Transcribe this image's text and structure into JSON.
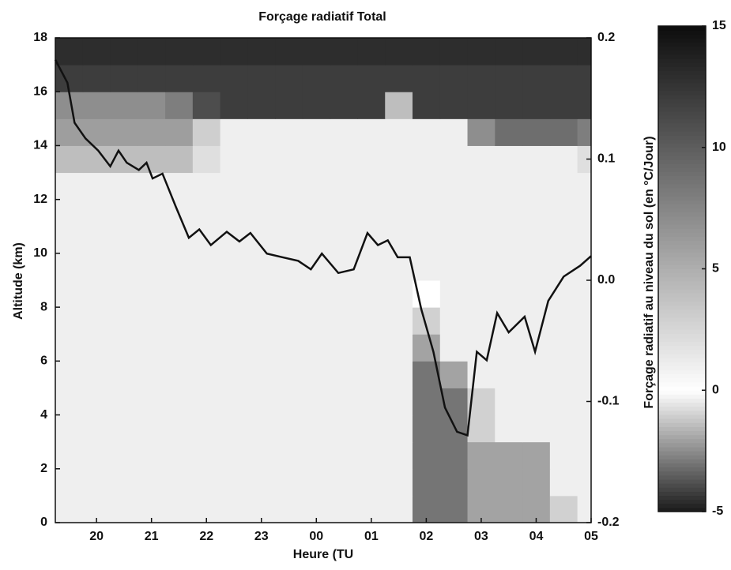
{
  "chart_data": {
    "type": "heatmap",
    "title": "Forçage radiatif Total",
    "xlabel": "Heure (TU",
    "ylabel": "Altitude (km)",
    "y2label": "Forçage radiatif au niveau du sol (en °C/Jour)",
    "xlim": [
      19.25,
      29
    ],
    "xticks": [
      20,
      21,
      22,
      23,
      {
        "value": 24,
        "label": "00"
      },
      {
        "value": 25,
        "label": "01"
      },
      {
        "value": 26,
        "label": "02"
      },
      {
        "value": 27,
        "label": "03"
      },
      {
        "value": 28,
        "label": "04"
      },
      {
        "value": 29,
        "label": "05"
      }
    ],
    "ylim": [
      0,
      18
    ],
    "yticks": [
      0,
      2,
      4,
      6,
      8,
      10,
      12,
      14,
      16,
      18
    ],
    "y2lim": [
      -0.2,
      0.2
    ],
    "y2ticks": [
      -0.2,
      -0.1,
      {
        "value": 0,
        "label": "0.0"
      },
      0.1,
      0.2
    ],
    "x_edges": [
      19.25,
      19.75,
      20.25,
      20.75,
      21.25,
      21.75,
      22.25,
      22.75,
      23.25,
      23.75,
      24.25,
      24.75,
      25.25,
      25.75,
      26.25,
      26.75,
      27.25,
      27.75,
      28.25,
      28.75,
      29
    ],
    "y_edges": [
      0,
      1,
      2,
      3,
      4,
      5,
      6,
      7,
      8,
      9,
      10,
      11,
      12,
      13,
      14,
      15,
      16,
      17,
      18
    ],
    "z": [
      [
        1,
        1,
        1,
        1,
        1,
        1,
        1,
        1,
        1,
        1,
        1,
        1,
        1,
        -3,
        -3,
        -2,
        -2,
        -2,
        -1,
        1
      ],
      [
        1,
        1,
        1,
        1,
        1,
        1,
        1,
        1,
        1,
        1,
        1,
        1,
        1,
        -3,
        -3,
        -2,
        -2,
        -2,
        1,
        1
      ],
      [
        1,
        1,
        1,
        1,
        1,
        1,
        1,
        1,
        1,
        1,
        1,
        1,
        1,
        -3,
        -3,
        -2,
        -2,
        -2,
        1,
        1
      ],
      [
        1,
        1,
        1,
        1,
        1,
        1,
        1,
        1,
        1,
        1,
        1,
        1,
        1,
        -3,
        -3,
        -1,
        1,
        1,
        1,
        1
      ],
      [
        1,
        1,
        1,
        1,
        1,
        1,
        1,
        1,
        1,
        1,
        1,
        1,
        1,
        -3,
        -3,
        -1,
        1,
        1,
        1,
        1
      ],
      [
        1,
        1,
        1,
        1,
        1,
        1,
        1,
        1,
        1,
        1,
        1,
        1,
        1,
        -3,
        -2,
        1,
        1,
        1,
        1,
        1
      ],
      [
        1,
        1,
        1,
        1,
        1,
        1,
        1,
        1,
        1,
        1,
        1,
        1,
        1,
        -2,
        1,
        1,
        1,
        1,
        1,
        1
      ],
      [
        1,
        1,
        1,
        1,
        1,
        1,
        1,
        1,
        1,
        1,
        1,
        1,
        1,
        -1,
        1,
        1,
        1,
        1,
        1,
        1
      ],
      [
        1,
        1,
        1,
        1,
        1,
        1,
        1,
        1,
        1,
        1,
        1,
        1,
        1,
        0,
        1,
        1,
        1,
        1,
        1,
        1
      ],
      [
        1,
        1,
        1,
        1,
        1,
        1,
        1,
        1,
        1,
        1,
        1,
        1,
        1,
        1,
        1,
        1,
        1,
        1,
        1,
        1
      ],
      [
        1,
        1,
        1,
        1,
        1,
        1,
        1,
        1,
        1,
        1,
        1,
        1,
        1,
        1,
        1,
        1,
        1,
        1,
        1,
        1
      ],
      [
        1,
        1,
        1,
        1,
        1,
        1,
        1,
        1,
        1,
        1,
        1,
        1,
        1,
        1,
        1,
        1,
        1,
        1,
        1,
        1
      ],
      [
        1,
        1,
        1,
        1,
        1,
        1,
        1,
        1,
        1,
        1,
        1,
        1,
        1,
        1,
        1,
        1,
        1,
        1,
        1,
        1
      ],
      [
        4,
        4,
        4,
        4,
        4,
        2,
        1,
        1,
        1,
        1,
        1,
        1,
        1,
        1,
        1,
        1,
        1,
        1,
        1,
        2
      ],
      [
        6,
        6,
        6,
        6,
        6,
        3,
        1,
        1,
        1,
        1,
        1,
        1,
        1,
        1,
        1,
        7,
        9,
        9,
        9,
        8
      ],
      [
        7,
        7,
        7,
        7,
        8,
        11,
        12,
        12,
        12,
        12,
        12,
        12,
        4,
        12,
        12,
        12,
        12,
        12,
        12,
        12
      ],
      [
        12,
        12,
        12,
        12,
        12,
        12,
        12,
        12,
        12,
        12,
        12,
        12,
        12,
        12,
        12,
        12,
        12,
        12,
        12,
        12
      ],
      [
        13,
        13,
        13,
        13,
        13,
        13,
        13,
        13,
        13,
        13,
        13,
        13,
        13,
        13,
        13,
        13,
        13,
        13,
        13,
        13
      ]
    ],
    "colorbar": {
      "lim": [
        -5,
        15
      ],
      "ticks": [
        -5,
        0,
        5,
        10,
        15
      ]
    },
    "series": [
      {
        "axis": "y2",
        "color": "#111111",
        "x": [
          19.25,
          19.47,
          19.6,
          19.8,
          20.03,
          20.25,
          20.4,
          20.55,
          20.77,
          20.91,
          21.02,
          21.2,
          21.44,
          21.68,
          21.87,
          22.08,
          22.37,
          22.6,
          22.8,
          23.1,
          23.38,
          23.67,
          23.9,
          24.1,
          24.4,
          24.68,
          24.93,
          25.12,
          25.3,
          25.48,
          25.7,
          25.91,
          26.13,
          26.34,
          26.56,
          26.75,
          26.92,
          27.1,
          27.29,
          27.5,
          27.79,
          27.98,
          28.22,
          28.5,
          28.8,
          29.0
        ],
        "values": [
          0.182,
          0.163,
          0.13,
          0.117,
          0.107,
          0.094,
          0.107,
          0.097,
          0.091,
          0.097,
          0.084,
          0.088,
          0.061,
          0.035,
          0.042,
          0.029,
          0.04,
          0.032,
          0.039,
          0.022,
          0.019,
          0.016,
          0.009,
          0.022,
          0.006,
          0.009,
          0.039,
          0.029,
          0.033,
          0.019,
          0.019,
          -0.024,
          -0.059,
          -0.105,
          -0.125,
          -0.128,
          -0.059,
          -0.066,
          -0.027,
          -0.043,
          -0.03,
          -0.059,
          -0.017,
          0.003,
          0.012,
          0.02
        ]
      }
    ]
  }
}
